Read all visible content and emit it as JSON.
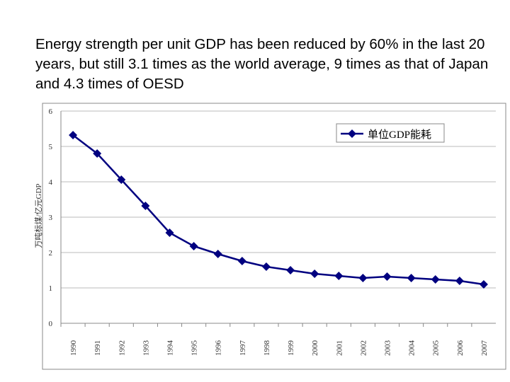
{
  "slide": {
    "title": "Energy strength per unit GDP has been reduced by 60% in the last 20 years, but still 3.1 times as the world average, 9 times as that of Japan and 4.3 times of OESD"
  },
  "chart_data": {
    "type": "line",
    "title": "",
    "xlabel": "",
    "ylabel": "万吨标煤/亿元GDP",
    "ylim": [
      0,
      6
    ],
    "yticks": [
      "0",
      "1",
      "2",
      "3",
      "4",
      "5",
      "6"
    ],
    "grid": true,
    "legend_position": "top-right",
    "categories": [
      "1990",
      "1991",
      "1992",
      "1993",
      "1994",
      "1995",
      "1996",
      "1997",
      "1998",
      "1999",
      "2000",
      "2001",
      "2002",
      "2003",
      "2004",
      "2005",
      "2006",
      "2007"
    ],
    "series": [
      {
        "name": "单位GDP能耗",
        "color": "#000080",
        "marker": "diamond",
        "values": [
          5.32,
          4.8,
          4.06,
          3.32,
          2.56,
          2.18,
          1.96,
          1.76,
          1.6,
          1.5,
          1.4,
          1.34,
          1.28,
          1.32,
          1.28,
          1.24,
          1.2,
          1.1
        ]
      }
    ]
  }
}
